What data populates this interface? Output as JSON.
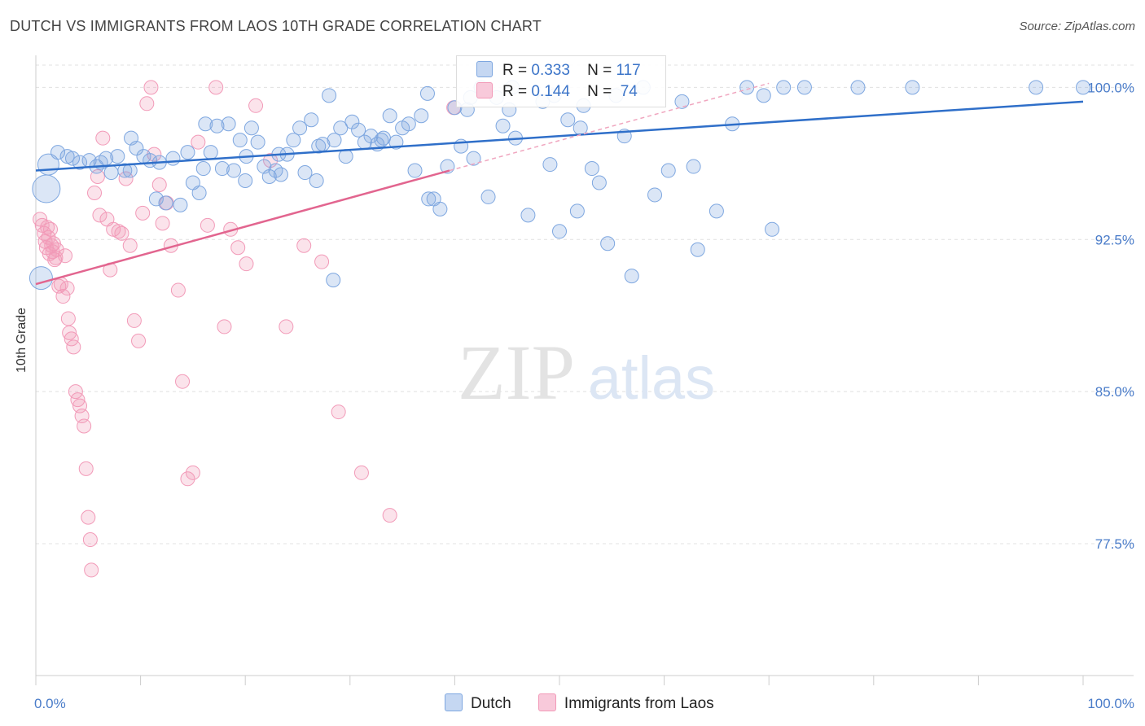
{
  "title": "DUTCH VS IMMIGRANTS FROM LAOS 10TH GRADE CORRELATION CHART",
  "source": "Source: ZipAtlas.com",
  "watermark": {
    "zip": "ZIP",
    "atlas": "atlas"
  },
  "legend": {
    "dutch": {
      "r_label": "R =",
      "r_value": "0.333",
      "n_label": "N =",
      "n_value": "117",
      "color": "#7ea7e0"
    },
    "laos": {
      "r_label": "R =",
      "r_value": "0.144",
      "n_label": "N =",
      "n_value": " 74",
      "color": "#f29ab8"
    }
  },
  "bottom_legend": [
    "Dutch",
    "Immigrants from Laos"
  ],
  "chart_data": {
    "type": "scatter",
    "title": "DUTCH VS IMMIGRANTS FROM LAOS 10TH GRADE CORRELATION CHART",
    "xlabel": "",
    "ylabel": "10th Grade",
    "xlim": [
      0,
      100
    ],
    "ylim": [
      71.0,
      101.5
    ],
    "x_tick_labels": [
      "0.0%",
      "100.0%"
    ],
    "y_ticks": [
      100.0,
      92.5,
      85.0,
      77.5
    ],
    "y_tick_labels": [
      "100.0%",
      "92.5%",
      "85.0%",
      "77.5%"
    ],
    "grid": "horizontal dashed",
    "legend_position": "top-center",
    "series": [
      {
        "name": "Dutch",
        "color": "#7ea7e0",
        "trend": {
          "x": [
            0,
            100
          ],
          "y": [
            95.9,
            99.3
          ]
        },
        "points": [
          [
            1.2,
            96.2
          ],
          [
            2.1,
            96.8
          ],
          [
            3.5,
            96.5
          ],
          [
            4.2,
            96.3
          ],
          [
            5.1,
            96.4
          ],
          [
            5.8,
            96.1
          ],
          [
            6.7,
            96.5
          ],
          [
            7.2,
            95.8
          ],
          [
            7.8,
            96.6
          ],
          [
            8.5,
            95.9
          ],
          [
            9.1,
            97.5
          ],
          [
            9.6,
            97.0
          ],
          [
            10.3,
            96.6
          ],
          [
            10.9,
            96.4
          ],
          [
            11.5,
            94.5
          ],
          [
            12.4,
            94.3
          ],
          [
            13.1,
            96.5
          ],
          [
            13.8,
            94.2
          ],
          [
            14.5,
            96.8
          ],
          [
            15.0,
            95.3
          ],
          [
            15.6,
            94.8
          ],
          [
            16.2,
            98.2
          ],
          [
            16.7,
            96.8
          ],
          [
            17.3,
            98.1
          ],
          [
            17.8,
            96.0
          ],
          [
            18.4,
            98.2
          ],
          [
            18.9,
            95.9
          ],
          [
            19.5,
            97.4
          ],
          [
            20.1,
            96.6
          ],
          [
            20.6,
            98.0
          ],
          [
            21.2,
            97.3
          ],
          [
            21.8,
            96.1
          ],
          [
            22.3,
            95.6
          ],
          [
            22.9,
            95.9
          ],
          [
            23.4,
            95.7
          ],
          [
            24.0,
            96.7
          ],
          [
            24.6,
            97.4
          ],
          [
            25.2,
            98.0
          ],
          [
            25.7,
            95.8
          ],
          [
            26.3,
            98.4
          ],
          [
            26.8,
            95.4
          ],
          [
            27.4,
            97.2
          ],
          [
            28.0,
            99.6
          ],
          [
            28.5,
            97.4
          ],
          [
            29.1,
            98.0
          ],
          [
            29.6,
            96.6
          ],
          [
            30.2,
            98.3
          ],
          [
            30.8,
            97.9
          ],
          [
            31.4,
            97.3
          ],
          [
            32.0,
            97.6
          ],
          [
            32.6,
            97.2
          ],
          [
            33.2,
            97.5
          ],
          [
            33.8,
            98.6
          ],
          [
            34.4,
            97.3
          ],
          [
            35.0,
            98.0
          ],
          [
            35.6,
            98.2
          ],
          [
            36.2,
            95.9
          ],
          [
            36.8,
            98.6
          ],
          [
            37.4,
            99.7
          ],
          [
            38.0,
            94.5
          ],
          [
            38.6,
            94.0
          ],
          [
            39.3,
            96.1
          ],
          [
            40.0,
            99.0
          ],
          [
            40.6,
            97.1
          ],
          [
            41.2,
            98.9
          ],
          [
            41.8,
            96.5
          ],
          [
            42.5,
            100.0
          ],
          [
            43.2,
            94.6
          ],
          [
            44.0,
            99.5
          ],
          [
            44.6,
            98.1
          ],
          [
            45.2,
            98.9
          ],
          [
            45.8,
            97.5
          ],
          [
            47.0,
            93.7
          ],
          [
            48.4,
            99.3
          ],
          [
            49.1,
            96.2
          ],
          [
            50.0,
            92.9
          ],
          [
            50.8,
            98.4
          ],
          [
            51.7,
            93.9
          ],
          [
            52.3,
            99.1
          ],
          [
            53.1,
            96.0
          ],
          [
            53.8,
            95.3
          ],
          [
            54.6,
            92.3
          ],
          [
            55.4,
            99.6
          ],
          [
            56.2,
            97.6
          ],
          [
            56.9,
            90.7
          ],
          [
            58.0,
            100.0
          ],
          [
            59.1,
            94.7
          ],
          [
            60.4,
            95.9
          ],
          [
            61.7,
            99.3
          ],
          [
            62.8,
            96.1
          ],
          [
            63.2,
            92.0
          ],
          [
            65.0,
            93.9
          ],
          [
            66.5,
            98.2
          ],
          [
            67.9,
            100.0
          ],
          [
            69.5,
            99.6
          ],
          [
            70.3,
            93.0
          ],
          [
            71.4,
            100.0
          ],
          [
            73.4,
            100.0
          ],
          [
            78.5,
            100.0
          ],
          [
            83.7,
            100.0
          ],
          [
            95.5,
            100.0
          ],
          [
            100.0,
            100.0
          ],
          [
            28.4,
            90.5
          ],
          [
            37.5,
            94.5
          ],
          [
            16.0,
            96.0
          ],
          [
            3.0,
            96.6
          ],
          [
            6.2,
            96.3
          ],
          [
            11.8,
            96.3
          ],
          [
            9.0,
            95.9
          ],
          [
            20.0,
            95.4
          ],
          [
            33.0,
            97.4
          ],
          [
            1.0,
            95.0
          ],
          [
            0.5,
            90.6
          ],
          [
            41.5,
            99.5
          ],
          [
            23.2,
            96.7
          ],
          [
            27.0,
            97.1
          ],
          [
            45.5,
            100.0
          ],
          [
            49.5,
            99.6
          ],
          [
            52.0,
            98.0
          ]
        ]
      },
      {
        "name": "Immigrants from Laos",
        "color": "#f29ab8",
        "trend": {
          "x": [
            0,
            39.5
          ],
          "y": [
            90.3,
            95.9
          ]
        },
        "trend_dashed": {
          "x": [
            39.5,
            70
          ],
          "y": [
            95.9,
            100.2
          ]
        },
        "points": [
          [
            0.4,
            93.5
          ],
          [
            0.6,
            93.2
          ],
          [
            0.8,
            92.8
          ],
          [
            0.9,
            92.4
          ],
          [
            1.0,
            92.1
          ],
          [
            1.1,
            93.1
          ],
          [
            1.2,
            92.6
          ],
          [
            1.3,
            91.8
          ],
          [
            1.4,
            93.0
          ],
          [
            1.5,
            92.2
          ],
          [
            1.6,
            91.9
          ],
          [
            1.7,
            92.3
          ],
          [
            1.8,
            91.5
          ],
          [
            1.9,
            91.6
          ],
          [
            2.0,
            92.0
          ],
          [
            2.2,
            90.2
          ],
          [
            2.4,
            90.3
          ],
          [
            2.6,
            89.7
          ],
          [
            2.8,
            91.7
          ],
          [
            3.0,
            90.1
          ],
          [
            3.1,
            88.6
          ],
          [
            3.2,
            87.9
          ],
          [
            3.4,
            87.6
          ],
          [
            3.6,
            87.2
          ],
          [
            3.8,
            85.0
          ],
          [
            4.0,
            84.6
          ],
          [
            4.2,
            84.3
          ],
          [
            4.4,
            83.8
          ],
          [
            4.6,
            83.3
          ],
          [
            4.8,
            81.2
          ],
          [
            5.0,
            78.8
          ],
          [
            5.2,
            77.7
          ],
          [
            5.3,
            76.2
          ],
          [
            5.6,
            94.8
          ],
          [
            5.9,
            95.6
          ],
          [
            6.1,
            93.7
          ],
          [
            6.4,
            97.5
          ],
          [
            6.8,
            93.5
          ],
          [
            7.1,
            91.0
          ],
          [
            7.4,
            93.0
          ],
          [
            7.9,
            92.9
          ],
          [
            8.2,
            92.8
          ],
          [
            8.6,
            95.5
          ],
          [
            9.0,
            92.2
          ],
          [
            9.4,
            88.5
          ],
          [
            9.8,
            87.5
          ],
          [
            10.2,
            93.8
          ],
          [
            10.6,
            99.2
          ],
          [
            11.0,
            100.0
          ],
          [
            11.3,
            96.7
          ],
          [
            11.8,
            95.2
          ],
          [
            12.1,
            93.3
          ],
          [
            12.5,
            94.3
          ],
          [
            12.9,
            92.2
          ],
          [
            13.6,
            90.0
          ],
          [
            14.0,
            85.5
          ],
          [
            14.5,
            80.7
          ],
          [
            15.0,
            81.0
          ],
          [
            15.5,
            97.3
          ],
          [
            16.4,
            93.2
          ],
          [
            17.2,
            100.0
          ],
          [
            18.0,
            88.2
          ],
          [
            18.6,
            93.0
          ],
          [
            19.3,
            92.1
          ],
          [
            20.1,
            91.3
          ],
          [
            21.0,
            99.1
          ],
          [
            22.4,
            96.4
          ],
          [
            23.9,
            88.2
          ],
          [
            25.6,
            92.2
          ],
          [
            27.3,
            91.4
          ],
          [
            28.9,
            84.0
          ],
          [
            31.1,
            81.0
          ],
          [
            33.8,
            78.9
          ],
          [
            39.9,
            99.0
          ]
        ]
      }
    ]
  }
}
